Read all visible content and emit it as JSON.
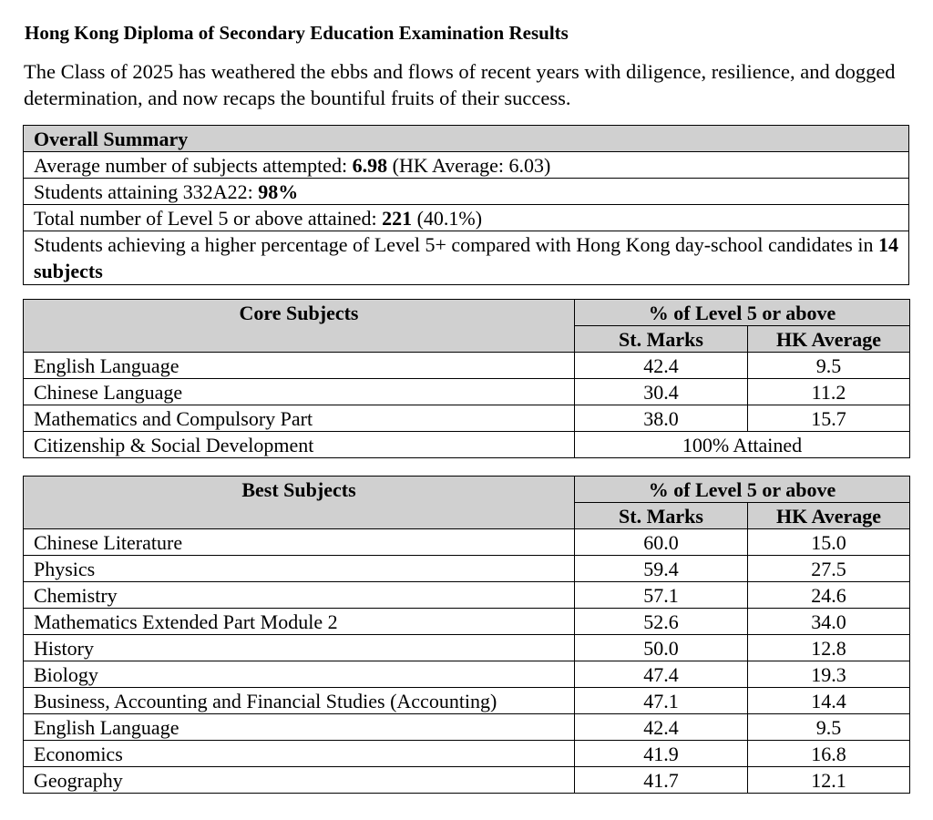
{
  "title": "Hong Kong Diploma of Secondary Education Examination Results",
  "intro": "The Class of 2025 has weathered the ebbs and flows of recent years with diligence, resilience, and dogged determination, and now recaps the bountiful fruits of their success.",
  "summary": {
    "header": "Overall Summary",
    "rows": [
      {
        "pre": "Average number of subjects attempted: ",
        "bold": "6.98",
        "post": " (HK Average: 6.03)"
      },
      {
        "pre": "Students attaining 332A22: ",
        "bold": "98%",
        "post": ""
      },
      {
        "pre": "Total number of Level 5 or above attained: ",
        "bold": "221",
        "post": " (40.1%)"
      },
      {
        "pre": "Students achieving a higher percentage of Level 5+ compared with Hong Kong day-school candidates in ",
        "bold": "14 subjects",
        "post": ""
      }
    ]
  },
  "core": {
    "header": "Core Subjects",
    "group": "% of Level 5 or above",
    "col1": "St. Marks",
    "col2": "HK Average",
    "rows": [
      {
        "subject": "English Language",
        "st": "42.4",
        "hk": "9.5"
      },
      {
        "subject": "Chinese Language",
        "st": "30.4",
        "hk": "11.2"
      },
      {
        "subject": "Mathematics and Compulsory Part",
        "st": "38.0",
        "hk": "15.7"
      }
    ],
    "csd": {
      "subject": "Citizenship & Social Development",
      "value": "100% Attained"
    }
  },
  "best": {
    "header": "Best Subjects",
    "group": "% of Level 5 or above",
    "col1": "St. Marks",
    "col2": "HK Average",
    "rows": [
      {
        "subject": "Chinese Literature",
        "st": "60.0",
        "hk": "15.0"
      },
      {
        "subject": "Physics",
        "st": "59.4",
        "hk": "27.5"
      },
      {
        "subject": "Chemistry",
        "st": "57.1",
        "hk": "24.6"
      },
      {
        "subject": "Mathematics Extended Part Module 2",
        "st": "52.6",
        "hk": "34.0"
      },
      {
        "subject": "History",
        "st": "50.0",
        "hk": "12.8"
      },
      {
        "subject": "Biology",
        "st": "47.4",
        "hk": "19.3"
      },
      {
        "subject": "Business, Accounting and Financial Studies (Accounting)",
        "st": "47.1",
        "hk": "14.4"
      },
      {
        "subject": "English Language",
        "st": "42.4",
        "hk": "9.5"
      },
      {
        "subject": "Economics",
        "st": "41.9",
        "hk": "16.8"
      },
      {
        "subject": "Geography",
        "st": "41.7",
        "hk": "12.1"
      }
    ]
  }
}
